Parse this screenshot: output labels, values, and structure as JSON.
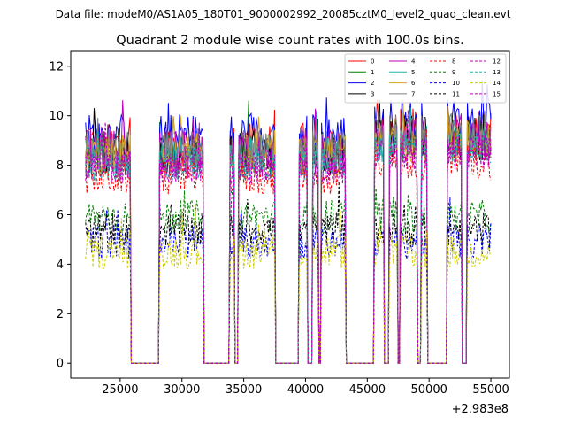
{
  "page": {
    "suptitle": "Data file: modeM0/AS1A05_180T01_9000002992_20085cztM0_level2_quad_clean.evt"
  },
  "chart_data": {
    "type": "line",
    "title": "Quadrant 2 module wise count rates with 100.0s bins.",
    "xlabel": "",
    "ylabel": "",
    "x_offset_label": "+2.983e8",
    "xlim": [
      21000,
      56500
    ],
    "ylim": [
      -0.6,
      12.6
    ],
    "grid": false,
    "legend_placement": "top-right",
    "legend_columns": 4,
    "x_ticks": [
      {
        "value": 25000,
        "label": "25000"
      },
      {
        "value": 30000,
        "label": "30000"
      },
      {
        "value": 35000,
        "label": "35000"
      },
      {
        "value": 40000,
        "label": "40000"
      },
      {
        "value": 45000,
        "label": "45000"
      },
      {
        "value": 50000,
        "label": "50000"
      },
      {
        "value": 55000,
        "label": "55000"
      }
    ],
    "y_ticks": [
      {
        "value": 0,
        "label": "0"
      },
      {
        "value": 2,
        "label": "2"
      },
      {
        "value": 4,
        "label": "4"
      },
      {
        "value": 6,
        "label": "6"
      },
      {
        "value": 8,
        "label": "8"
      },
      {
        "value": 10,
        "label": "10"
      },
      {
        "value": 12,
        "label": "12"
      }
    ],
    "active_intervals": [
      [
        22200,
        25800
      ],
      [
        28200,
        31700
      ],
      [
        33900,
        34200
      ],
      [
        34600,
        37500
      ],
      [
        39500,
        40100
      ],
      [
        40600,
        41000
      ],
      [
        41300,
        43200
      ],
      [
        45600,
        46300
      ],
      [
        46800,
        47400
      ],
      [
        47700,
        49000
      ],
      [
        49400,
        49800
      ],
      [
        51500,
        52600
      ],
      [
        53100,
        55000
      ]
    ],
    "series": [
      {
        "name": "0",
        "color": "#ff0000",
        "dash": "solid",
        "level": 8.8
      },
      {
        "name": "1",
        "color": "#008000",
        "dash": "solid",
        "level": 8.5
      },
      {
        "name": "2",
        "color": "#0000ff",
        "dash": "solid",
        "level": 9.2
      },
      {
        "name": "3",
        "color": "#000000",
        "dash": "solid",
        "level": 8.5
      },
      {
        "name": "4",
        "color": "#bf00bf",
        "dash": "solid",
        "level": 8.6
      },
      {
        "name": "5",
        "color": "#20b2aa",
        "dash": "solid",
        "level": 8.3
      },
      {
        "name": "6",
        "color": "#daa520",
        "dash": "solid",
        "level": 8.4
      },
      {
        "name": "7",
        "color": "#808080",
        "dash": "solid",
        "level": 8.6
      },
      {
        "name": "8",
        "color": "#ff0000",
        "dash": "dashed",
        "level": 7.5
      },
      {
        "name": "9",
        "color": "#008000",
        "dash": "dashed",
        "level": 5.9
      },
      {
        "name": "10",
        "color": "#0000ff",
        "dash": "dashed",
        "level": 4.9
      },
      {
        "name": "11",
        "color": "#000000",
        "dash": "dashed",
        "level": 5.4
      },
      {
        "name": "12",
        "color": "#bf00bf",
        "dash": "dashed",
        "level": 8.0
      },
      {
        "name": "13",
        "color": "#20b2aa",
        "dash": "dashed",
        "level": 8.1
      },
      {
        "name": "14",
        "color": "#cccc00",
        "dash": "dashed",
        "level": 4.5
      },
      {
        "name": "15",
        "color": "#bf00bf",
        "dash": "dashed",
        "level": 7.9
      }
    ]
  }
}
